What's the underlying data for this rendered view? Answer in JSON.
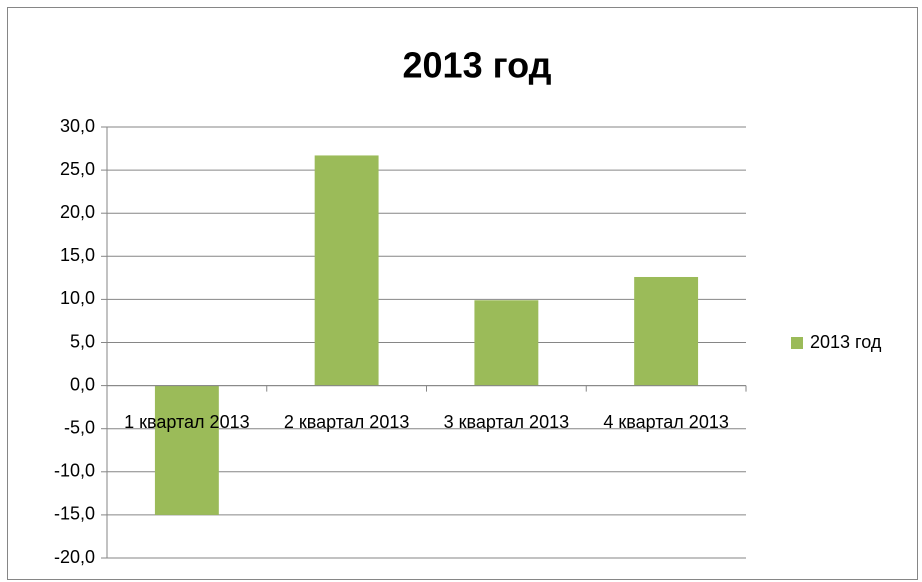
{
  "chart_data": {
    "type": "bar",
    "title": "2013 год",
    "categories": [
      "1 квартал 2013",
      "2 квартал 2013",
      "3 квартал 2013",
      "4 квартал 2013"
    ],
    "series": [
      {
        "name": "2013 год",
        "color": "#9bbb59",
        "values": [
          -15.0,
          26.7,
          9.9,
          12.6
        ]
      }
    ],
    "ylim": [
      -20,
      30
    ],
    "yticks": [
      {
        "value": -20,
        "label": "-20,0"
      },
      {
        "value": -15,
        "label": "-15,0"
      },
      {
        "value": -10,
        "label": "-10,0"
      },
      {
        "value": -5,
        "label": "-5,0"
      },
      {
        "value": 0,
        "label": "0,0"
      },
      {
        "value": 5,
        "label": "5,0"
      },
      {
        "value": 10,
        "label": "10,0"
      },
      {
        "value": 15,
        "label": "15,0"
      },
      {
        "value": 20,
        "label": "20,0"
      },
      {
        "value": 25,
        "label": "25,0"
      },
      {
        "value": 30,
        "label": "30,0"
      }
    ],
    "grid": true,
    "legend": "right"
  }
}
